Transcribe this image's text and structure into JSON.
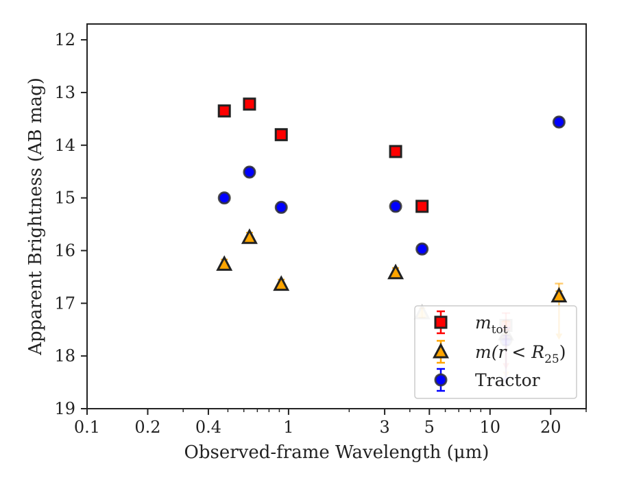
{
  "chart_data": {
    "type": "scatter",
    "xlabel": "Observed-frame Wavelength (μm)",
    "ylabel": "Apparent Brightness (AB mag)",
    "xscale": "log",
    "xlim": [
      0.1,
      30
    ],
    "ylim": [
      19,
      11.7
    ],
    "y_inverted": true,
    "grid": false,
    "legend_position": "lower-right",
    "x_ticks": [
      0.1,
      0.2,
      0.4,
      1,
      3,
      5,
      10,
      20
    ],
    "x_tick_labels": [
      "0.1",
      "0.2",
      "0.4",
      "1",
      "3",
      "5",
      "10",
      "20"
    ],
    "y_ticks": [
      12,
      13,
      14,
      15,
      16,
      17,
      18,
      19
    ],
    "y_tick_labels": [
      "12",
      "13",
      "14",
      "15",
      "16",
      "17",
      "18",
      "19"
    ],
    "series": [
      {
        "name": "m_tot",
        "legend_label": "m",
        "legend_sub": "tot",
        "marker": "square",
        "color": "#ff0000",
        "edge_color": "#222222",
        "points": [
          {
            "x": 0.48,
            "y": 13.35
          },
          {
            "x": 0.64,
            "y": 13.22
          },
          {
            "x": 0.92,
            "y": 13.8
          },
          {
            "x": 3.4,
            "y": 14.12
          },
          {
            "x": 4.6,
            "y": 15.16
          },
          {
            "x": 12.0,
            "y": 17.42,
            "upper_limit": true,
            "faded": true
          }
        ]
      },
      {
        "name": "m(r < R25)",
        "legend_label": "m(r < R",
        "legend_sub": "25",
        "legend_suffix": ")",
        "marker": "triangle",
        "color": "#ffa500",
        "edge_color": "#222222",
        "points": [
          {
            "x": 0.48,
            "y": 16.26
          },
          {
            "x": 0.64,
            "y": 15.75
          },
          {
            "x": 0.92,
            "y": 16.64
          },
          {
            "x": 3.4,
            "y": 16.42
          },
          {
            "x": 4.6,
            "y": 17.18,
            "faded": true
          },
          {
            "x": 12.0,
            "y": 17.58,
            "upper_limit": true,
            "faded": true
          },
          {
            "x": 22.0,
            "y": 16.86,
            "upper_limit": true
          }
        ]
      },
      {
        "name": "Tractor",
        "legend_label": "Tractor",
        "marker": "circle",
        "color": "#0000ff",
        "edge_color": "#333333",
        "points": [
          {
            "x": 0.48,
            "y": 15.0
          },
          {
            "x": 0.64,
            "y": 14.51
          },
          {
            "x": 0.92,
            "y": 15.18
          },
          {
            "x": 3.4,
            "y": 15.16
          },
          {
            "x": 4.6,
            "y": 15.97
          },
          {
            "x": 12.0,
            "y": 17.7,
            "upper_limit": true,
            "faded": true
          },
          {
            "x": 22.0,
            "y": 13.56
          }
        ]
      }
    ]
  }
}
